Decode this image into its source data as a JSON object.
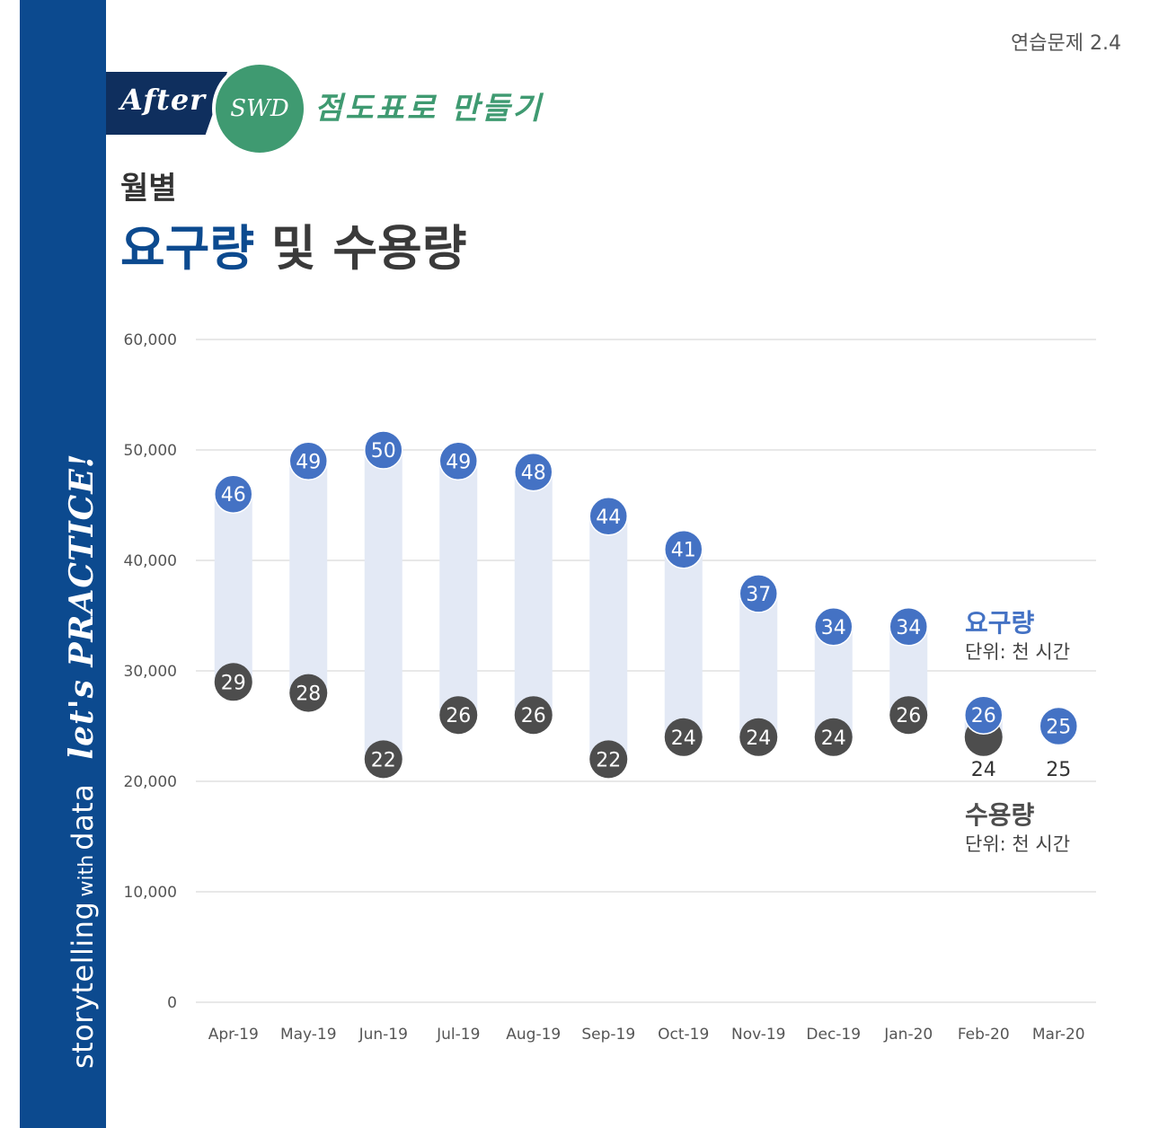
{
  "exercise_label": "연습문제 2.4",
  "sidebar": {
    "storytelling": "storytelling",
    "with": "with",
    "data": "data",
    "practice": "let's PRACTICE!"
  },
  "header": {
    "after": "After",
    "swd": "SWD",
    "scatter": "점도표로 만들기",
    "title_small": "월별",
    "title_part1": "요구량",
    "title_part2": "및 수용량"
  },
  "colors": {
    "demand": "#4472c4",
    "capacity": "#4d4d4d",
    "range_bar": "#e3e9f5",
    "gridline": "#d9d9d9",
    "sidebar": "#0c4a8f",
    "swd_green": "#3f9a71"
  },
  "legend": {
    "demand_name": "요구량",
    "demand_unit": "단위: 천 시간",
    "capacity_name": "수용량",
    "capacity_unit": "단위: 천 시간"
  },
  "chart_data": {
    "type": "scatter",
    "title": "월별 요구량 및 수용량",
    "xlabel": "",
    "ylabel": "",
    "ylim": [
      0,
      60000
    ],
    "yticks": [
      0,
      10000,
      20000,
      30000,
      40000,
      50000,
      60000
    ],
    "ytick_labels": [
      "0",
      "10,000",
      "20,000",
      "30,000",
      "40,000",
      "50,000",
      "60,000"
    ],
    "grid": true,
    "categories": [
      "Apr-19",
      "May-19",
      "Jun-19",
      "Jul-19",
      "Aug-19",
      "Sep-19",
      "Oct-19",
      "Nov-19",
      "Dec-19",
      "Jan-20",
      "Feb-20",
      "Mar-20"
    ],
    "series": [
      {
        "name": "요구량",
        "values": [
          46000,
          49000,
          50000,
          49000,
          48000,
          44000,
          41000,
          37000,
          34000,
          34000,
          26000,
          25000
        ],
        "labels": [
          "46",
          "49",
          "50",
          "49",
          "48",
          "44",
          "41",
          "37",
          "34",
          "34",
          "26",
          "25"
        ]
      },
      {
        "name": "수용량",
        "values": [
          29000,
          28000,
          22000,
          26000,
          26000,
          22000,
          24000,
          24000,
          24000,
          26000,
          24000,
          25000
        ],
        "labels": [
          "29",
          "28",
          "22",
          "26",
          "26",
          "22",
          "24",
          "24",
          "24",
          "26",
          "24",
          "25"
        ]
      }
    ]
  }
}
